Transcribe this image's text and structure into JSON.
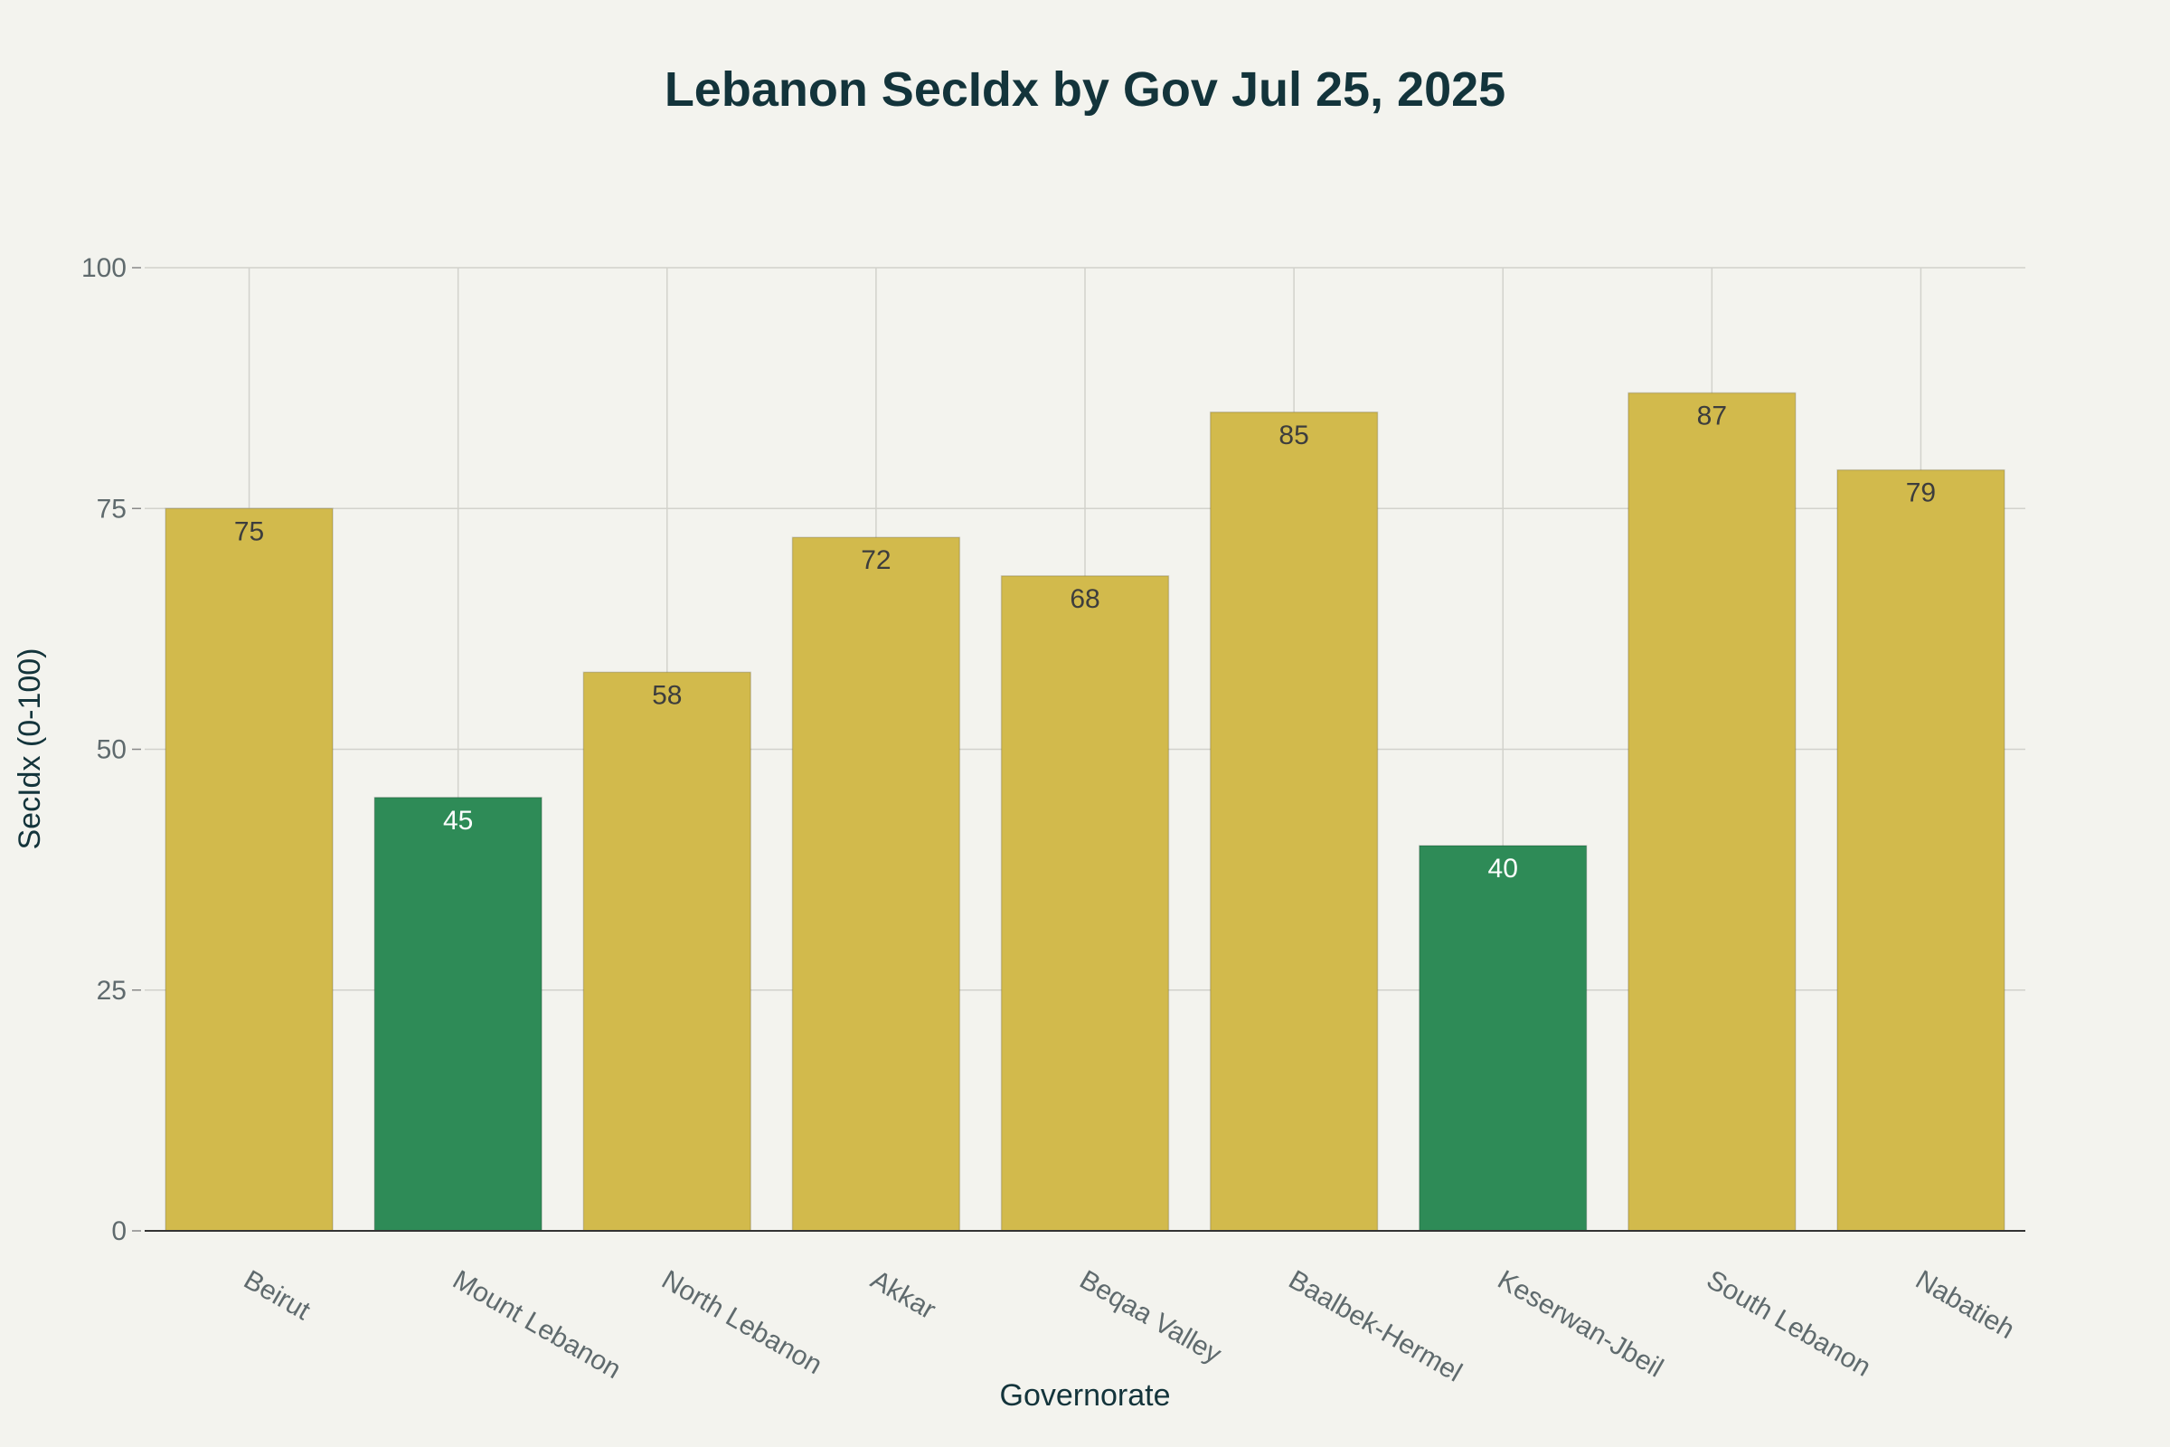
{
  "chart_data": {
    "type": "bar",
    "title": "Lebanon SecIdx by Gov Jul 25, 2025",
    "xlabel": "Governorate",
    "ylabel": "SecIdx (0-100)",
    "ylim": [
      0,
      100
    ],
    "yticks": [
      0,
      25,
      50,
      75,
      100
    ],
    "categories": [
      "Beirut",
      "Mount Lebanon",
      "North Lebanon",
      "Akkar",
      "Beqaa Valley",
      "Baalbek-Hermel",
      "Keserwan-Jbeil",
      "South Lebanon",
      "Nabatieh"
    ],
    "values": [
      75,
      45,
      58,
      72,
      68,
      85,
      40,
      87,
      79
    ],
    "bar_groups": [
      "high",
      "low",
      "high",
      "high",
      "high",
      "high",
      "low",
      "high",
      "high"
    ],
    "colors": {
      "high": "#d2ba4c",
      "low": "#2e8b57",
      "high_label": "#3d3d3d",
      "low_label": "#ffffff",
      "background": "#f3f3ee"
    },
    "grid": true
  }
}
